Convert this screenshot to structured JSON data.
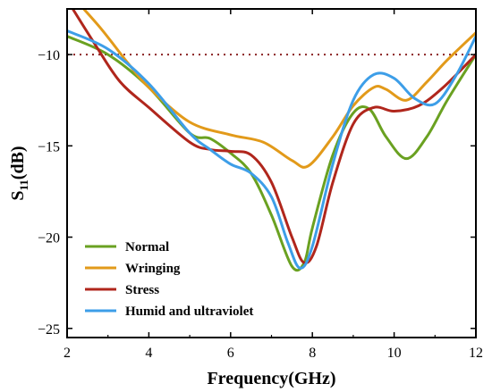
{
  "chart_data": {
    "type": "line",
    "xlabel": "Frequency(GHz)",
    "ylabel": {
      "base": "S",
      "sub": "11",
      "suffix": "(dB)"
    },
    "xlim": [
      2,
      12
    ],
    "ylim": [
      -25.5,
      -7.5
    ],
    "xticks": [
      {
        "value": 2,
        "label": "2"
      },
      {
        "value": 4,
        "label": "4"
      },
      {
        "value": 6,
        "label": "6"
      },
      {
        "value": 8,
        "label": "8"
      },
      {
        "value": 10,
        "label": "10"
      },
      {
        "value": 12,
        "label": "12"
      }
    ],
    "yticks": [
      {
        "value": -10,
        "label": "−10"
      },
      {
        "value": -15,
        "label": "−15"
      },
      {
        "value": -20,
        "label": "−20"
      },
      {
        "value": -25,
        "label": "−25"
      }
    ],
    "reference_line": {
      "y": -10,
      "color": "#8b2323",
      "style": "dotted"
    },
    "grid": false,
    "legend_position": "bottom-left",
    "series": [
      {
        "name": "Normal",
        "color": "#6aa121",
        "points": [
          [
            2,
            -9.0
          ],
          [
            3,
            -10.0
          ],
          [
            4,
            -11.8
          ],
          [
            5,
            -14.3
          ],
          [
            5.5,
            -14.6
          ],
          [
            6,
            -15.4
          ],
          [
            6.5,
            -16.5
          ],
          [
            7,
            -18.8
          ],
          [
            7.5,
            -21.6
          ],
          [
            7.8,
            -21.4
          ],
          [
            8,
            -19.5
          ],
          [
            8.5,
            -15.5
          ],
          [
            9,
            -13.2
          ],
          [
            9.4,
            -13.0
          ],
          [
            9.8,
            -14.5
          ],
          [
            10.3,
            -15.7
          ],
          [
            10.8,
            -14.5
          ],
          [
            11.3,
            -12.5
          ],
          [
            12,
            -10.0
          ]
        ]
      },
      {
        "name": "Wringing",
        "color": "#e29a1a",
        "points": [
          [
            2,
            -6.5
          ],
          [
            2.8,
            -8.5
          ],
          [
            3.5,
            -10.5
          ],
          [
            4,
            -11.8
          ],
          [
            5,
            -13.7
          ],
          [
            6,
            -14.4
          ],
          [
            6.8,
            -14.8
          ],
          [
            7.5,
            -15.8
          ],
          [
            7.9,
            -16.1
          ],
          [
            8.5,
            -14.5
          ],
          [
            9,
            -12.8
          ],
          [
            9.5,
            -11.8
          ],
          [
            9.8,
            -11.9
          ],
          [
            10.3,
            -12.5
          ],
          [
            10.8,
            -11.5
          ],
          [
            11.3,
            -10.3
          ],
          [
            12,
            -8.8
          ]
        ]
      },
      {
        "name": "Stress",
        "color": "#b0261c",
        "points": [
          [
            2,
            -7.0
          ],
          [
            2.7,
            -9.5
          ],
          [
            3.3,
            -11.5
          ],
          [
            4,
            -12.9
          ],
          [
            5,
            -14.8
          ],
          [
            5.5,
            -15.2
          ],
          [
            6,
            -15.3
          ],
          [
            6.5,
            -15.5
          ],
          [
            7,
            -17.0
          ],
          [
            7.5,
            -20.0
          ],
          [
            7.8,
            -21.4
          ],
          [
            8.1,
            -20.5
          ],
          [
            8.5,
            -17.0
          ],
          [
            9,
            -13.8
          ],
          [
            9.5,
            -12.9
          ],
          [
            10,
            -13.1
          ],
          [
            10.6,
            -12.8
          ],
          [
            11.2,
            -11.8
          ],
          [
            12,
            -10.0
          ]
        ]
      },
      {
        "name": "Humid and ultraviolet",
        "color": "#3d9ee8",
        "points": [
          [
            2,
            -8.7
          ],
          [
            3,
            -9.7
          ],
          [
            4,
            -11.6
          ],
          [
            5,
            -14.3
          ],
          [
            5.5,
            -15.2
          ],
          [
            6,
            -16.0
          ],
          [
            6.5,
            -16.5
          ],
          [
            7,
            -17.8
          ],
          [
            7.4,
            -20.3
          ],
          [
            7.7,
            -21.7
          ],
          [
            8,
            -20.5
          ],
          [
            8.5,
            -16.0
          ],
          [
            9,
            -12.5
          ],
          [
            9.5,
            -11.1
          ],
          [
            10,
            -11.3
          ],
          [
            10.5,
            -12.4
          ],
          [
            11,
            -12.7
          ],
          [
            11.5,
            -11.2
          ],
          [
            12,
            -9.0
          ]
        ]
      }
    ]
  }
}
